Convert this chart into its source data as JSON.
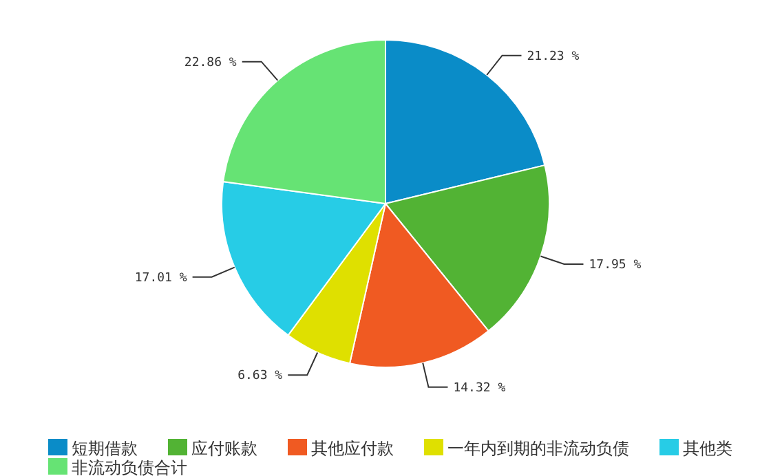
{
  "chart_data": {
    "type": "pie",
    "categories": [
      "短期借款",
      "应付账款",
      "其他应付款",
      "一年内到期的非流动负债",
      "其他类",
      "非流动负债合计"
    ],
    "values": [
      21.23,
      17.95,
      14.32,
      6.63,
      17.01,
      22.86
    ],
    "value_labels": [
      "21.23 %",
      "17.95 %",
      "14.32 %",
      "6.63 %",
      "17.01 %",
      "22.86 %"
    ],
    "colors": [
      "#0a8cc8",
      "#52b334",
      "#f05a22",
      "#dfe000",
      "#27cce6",
      "#66e374"
    ],
    "legend": "bottom"
  }
}
